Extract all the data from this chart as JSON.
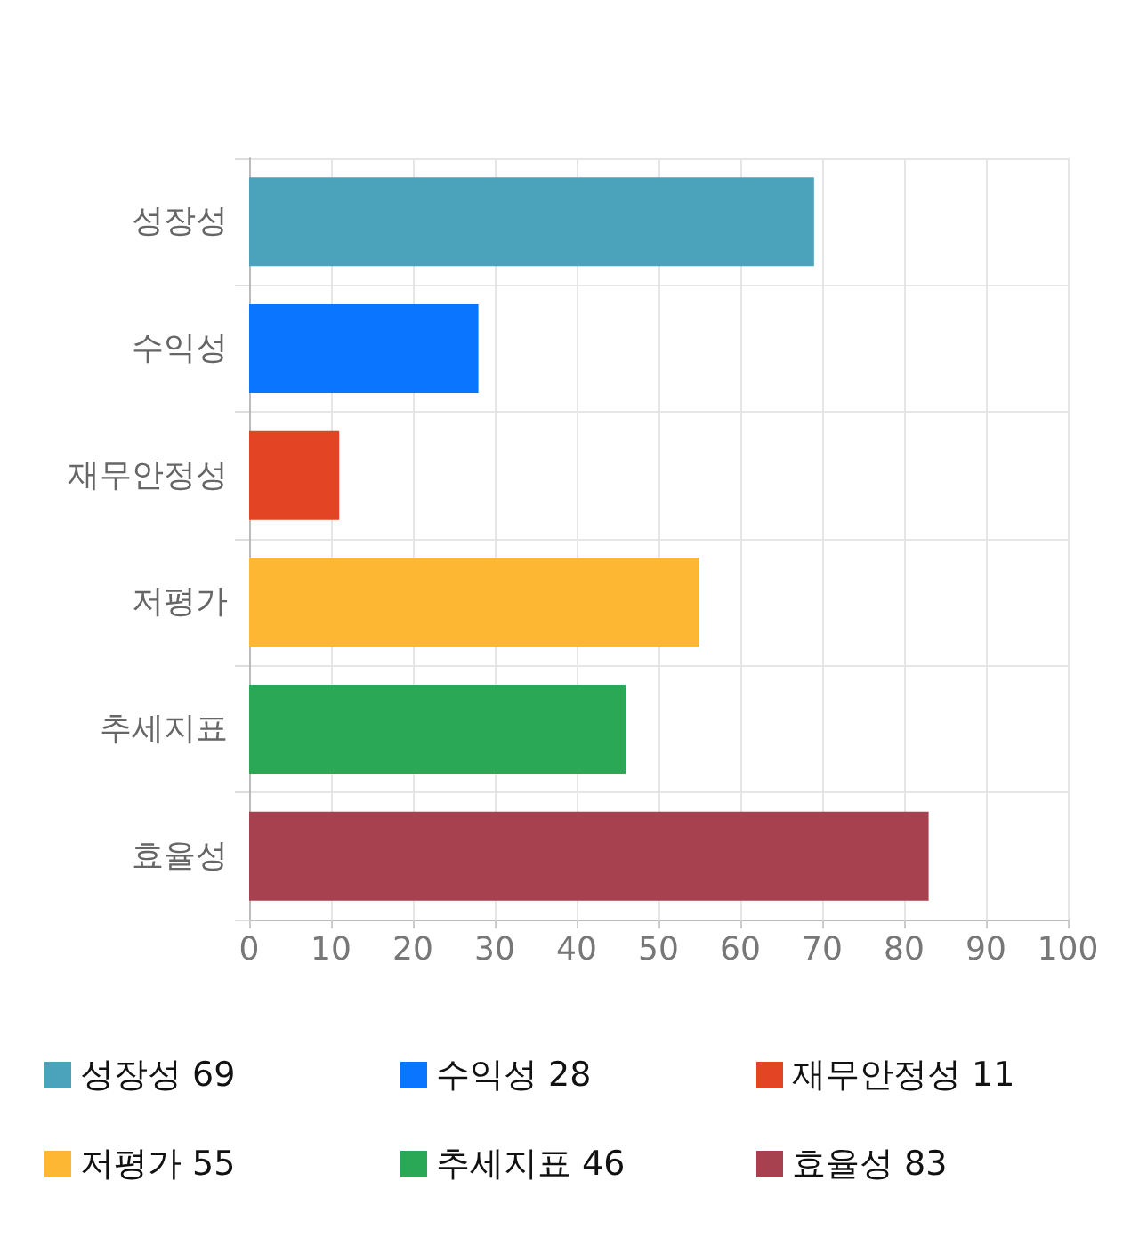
{
  "chart_data": {
    "type": "bar",
    "orientation": "horizontal",
    "categories": [
      "성장성",
      "수익성",
      "재무안정성",
      "저평가",
      "추세지표",
      "효율성"
    ],
    "series": [
      {
        "name": "성장성 69",
        "color": "#4aa3bb",
        "values": [
          69,
          null,
          null,
          null,
          null,
          null
        ]
      },
      {
        "name": "수익성 28",
        "color": "#0a75fe",
        "values": [
          null,
          28,
          null,
          null,
          null,
          null
        ]
      },
      {
        "name": "재무안정성 11",
        "color": "#e34424",
        "values": [
          null,
          null,
          11,
          null,
          null,
          null
        ]
      },
      {
        "name": "저평가 55",
        "color": "#fdb732",
        "values": [
          null,
          null,
          null,
          55,
          null,
          null
        ]
      },
      {
        "name": "추세지표 46",
        "color": "#2aa855",
        "values": [
          null,
          null,
          null,
          null,
          46,
          null
        ]
      },
      {
        "name": "효율성 83",
        "color": "#a8414f",
        "values": [
          null,
          null,
          null,
          null,
          null,
          83
        ]
      }
    ],
    "xlim": [
      0,
      100
    ],
    "xticks": [
      0,
      10,
      20,
      30,
      40,
      50,
      60,
      70,
      80,
      90,
      100
    ],
    "grid": true,
    "legend": "bottom"
  }
}
